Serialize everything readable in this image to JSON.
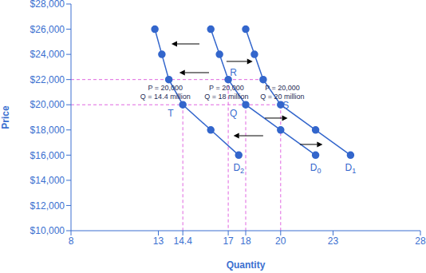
{
  "chart_data": {
    "type": "line",
    "x_label": "Quantity",
    "y_label": "Price",
    "grid": false,
    "xlim": [
      8,
      28
    ],
    "xticks": [
      8,
      13,
      14.4,
      17,
      18,
      20,
      23,
      28
    ],
    "ylim": [
      10000,
      28000
    ],
    "yticks": [
      {
        "value": 10000,
        "label": "$10,000"
      },
      {
        "value": 12000,
        "label": "$12,000"
      },
      {
        "value": 14000,
        "label": "$14,000"
      },
      {
        "value": 16000,
        "label": "$16,000"
      },
      {
        "value": 18000,
        "label": "$18,000"
      },
      {
        "value": 20000,
        "label": "$20,000"
      },
      {
        "value": 22000,
        "label": "$22,000"
      },
      {
        "value": 24000,
        "label": "$24,000"
      },
      {
        "value": 26000,
        "label": "$26,000"
      },
      {
        "value": 28000,
        "label": "$28,000"
      }
    ],
    "series": [
      {
        "name": "D2",
        "color": "#3366cc",
        "marker": "circle",
        "x": [
          12.8,
          13.2,
          13.6,
          14.4,
          16,
          17.6
        ],
        "values": [
          26000,
          24000,
          22000,
          20000,
          18000,
          16000
        ]
      },
      {
        "name": "D0",
        "color": "#3366cc",
        "marker": "circle",
        "x": [
          16,
          16.5,
          17,
          18,
          20,
          22
        ],
        "values": [
          26000,
          24000,
          22000,
          20000,
          18000,
          16000
        ]
      },
      {
        "name": "D1",
        "color": "#3366cc",
        "marker": "circle",
        "x": [
          18,
          18.5,
          19,
          20,
          22,
          24
        ],
        "values": [
          26000,
          24000,
          22000,
          20000,
          18000,
          16000
        ]
      }
    ],
    "guides": [
      {
        "x": [
          8,
          19
        ],
        "y": [
          22000,
          22000
        ],
        "color": "#e066e0",
        "line_style": "dashed"
      },
      {
        "x": [
          8,
          20
        ],
        "y": [
          20000,
          20000
        ],
        "color": "#e066e0",
        "line_style": "dashed"
      },
      {
        "x": [
          14.4,
          14.4
        ],
        "y": [
          20000,
          10000
        ],
        "color": "#e066e0",
        "line_style": "dashed"
      },
      {
        "x": [
          17,
          17
        ],
        "y": [
          22000,
          10000
        ],
        "color": "#e066e0",
        "line_style": "dashed"
      },
      {
        "x": [
          18,
          18
        ],
        "y": [
          20000,
          10000
        ],
        "color": "#e066e0",
        "line_style": "dashed"
      },
      {
        "x": [
          20,
          20
        ],
        "y": [
          20000,
          10000
        ],
        "color": "#e066e0",
        "line_style": "dashed"
      }
    ],
    "arrows": [
      {
        "from": [
          15.35,
          24830
        ],
        "to": [
          13.75,
          24830
        ]
      },
      {
        "from": [
          15.9,
          22550
        ],
        "to": [
          14.2,
          22550
        ]
      },
      {
        "from": [
          16.9,
          23440
        ],
        "to": [
          18.4,
          23440
        ]
      },
      {
        "from": [
          19.1,
          18940
        ],
        "to": [
          20.4,
          18940
        ]
      },
      {
        "from": [
          19.0,
          17540
        ],
        "to": [
          17.3,
          17540
        ]
      },
      {
        "from": [
          21.1,
          16850
        ],
        "to": [
          22.4,
          16850
        ]
      }
    ],
    "annotations": [
      {
        "text": [
          "P = 20,000",
          "Q = 14.4 million"
        ],
        "x": 13.4,
        "y": 21300
      },
      {
        "text": [
          "P = 20,000",
          "Q = 18 million"
        ],
        "x": 16.9,
        "y": 21300
      },
      {
        "text": [
          "P = 20,000",
          "Q = 20 million"
        ],
        "x": 20.1,
        "y": 21300
      },
      {
        "text": [
          "R"
        ],
        "x": 17.3,
        "y": 22500
      },
      {
        "text": [
          "Q"
        ],
        "x": 17.3,
        "y": 19250
      },
      {
        "text": [
          "S"
        ],
        "x": 20.3,
        "y": 19900
      },
      {
        "text": [
          "T"
        ],
        "x": 13.7,
        "y": 19250
      }
    ]
  }
}
